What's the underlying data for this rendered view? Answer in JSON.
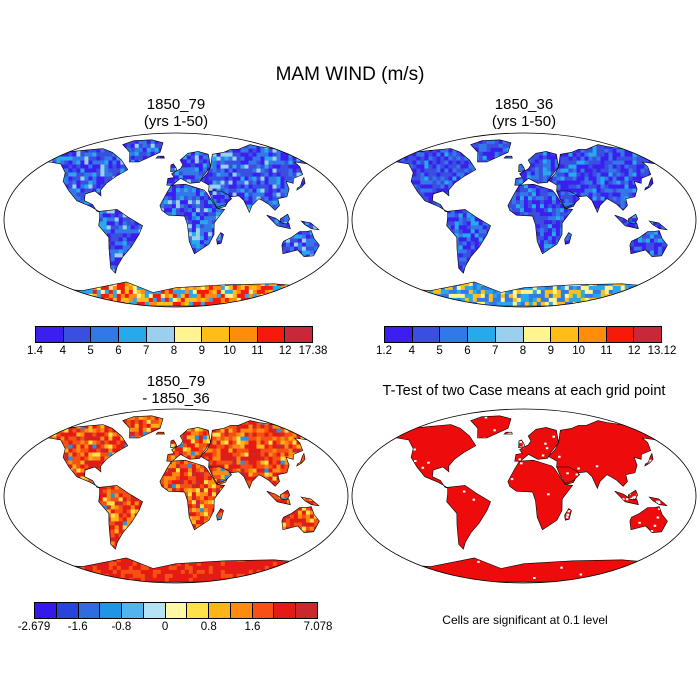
{
  "title": "MAM WIND (m/s)",
  "panels": [
    {
      "title1": "1850_79",
      "title2": "(yrs 1-50)",
      "theme": "abs_high"
    },
    {
      "title1": "1850_36",
      "title2": "(yrs 1-50)",
      "theme": "abs_low"
    },
    {
      "title1": "1850_79",
      "title2": "- 1850_36",
      "theme": "diff"
    },
    {
      "title1": "T-Test of two Case means at each grid point",
      "title2": "",
      "theme": "ttest"
    }
  ],
  "colorbars": [
    {
      "colors": [
        "#3b1ff0",
        "#3a4fe0",
        "#3378e8",
        "#27a9ee",
        "#9ad0ee",
        "#fff58f",
        "#ffbe16",
        "#ff8d0a",
        "#f61a0a",
        "#c9283a"
      ],
      "labels": [
        "1.4",
        "4",
        "5",
        "6",
        "7",
        "8",
        "9",
        "10",
        "11",
        "12",
        "17.38"
      ]
    },
    {
      "colors": [
        "#3b1ff0",
        "#3a4fe0",
        "#3378e8",
        "#27a9ee",
        "#9ad0ee",
        "#fff58f",
        "#ffbe16",
        "#ff8d0a",
        "#f61a0a",
        "#c9283a"
      ],
      "labels": [
        "1.2",
        "4",
        "5",
        "6",
        "7",
        "8",
        "9",
        "10",
        "11",
        "12",
        "13.12"
      ]
    },
    {
      "colors": [
        "#3419ea",
        "#2745dc",
        "#2e6ce0",
        "#1f95e5",
        "#52b4ee",
        "#b5e2f4",
        "#fff8a5",
        "#ffe14a",
        "#ffb41a",
        "#ff8a12",
        "#f65012",
        "#e41b15",
        "#c8282e"
      ],
      "labels": [
        "-2.679",
        "",
        "-1.6",
        "",
        "-0.8",
        "",
        "0",
        "",
        "0.8",
        "",
        "1.6",
        "",
        "",
        "7.078"
      ]
    }
  ],
  "note": "Cells are significant at 0.1 level",
  "colors": {
    "ttest_fill": "#ee0b0b",
    "ocean": "#ffffff",
    "outline": "#000000"
  }
}
